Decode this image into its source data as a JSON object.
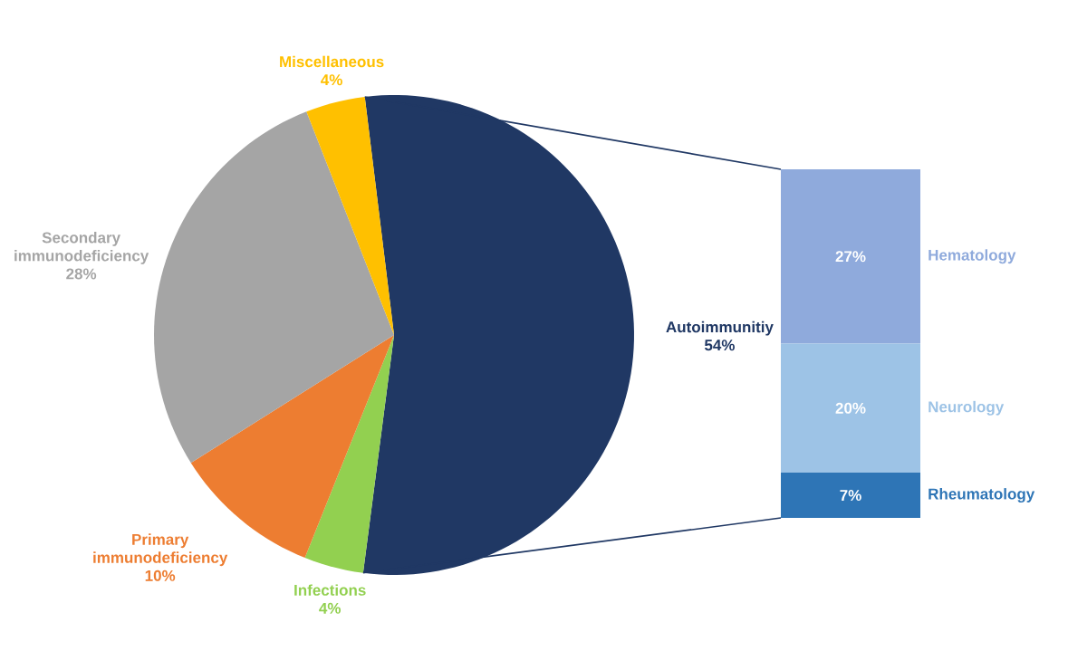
{
  "chart_data": [
    {
      "type": "pie",
      "categories": [
        "Autoimmunitiy",
        "Infections",
        "Primary immunodeficiency",
        "Secondary immunodeficiency",
        "Miscellaneous"
      ],
      "values": [
        54,
        4,
        10,
        28,
        4
      ],
      "colors": [
        "#203864",
        "#92d050",
        "#ed7d31",
        "#a5a5a5",
        "#ffc000"
      ],
      "value_labels": [
        "54%",
        "4%",
        "10%",
        "28%",
        "4%"
      ]
    },
    {
      "type": "bar",
      "stacked": true,
      "categories": [
        null
      ],
      "series": [
        {
          "name": "Rheumatology",
          "color": "#2e75b6",
          "values": [
            7
          ],
          "value_labels": [
            "7%"
          ]
        },
        {
          "name": "Neurology",
          "color": "#9dc3e6",
          "values": [
            20
          ],
          "value_labels": [
            "20%"
          ]
        },
        {
          "name": "Hematology",
          "color": "#8faadc",
          "values": [
            27
          ],
          "value_labels": [
            "27%"
          ]
        }
      ]
    }
  ]
}
